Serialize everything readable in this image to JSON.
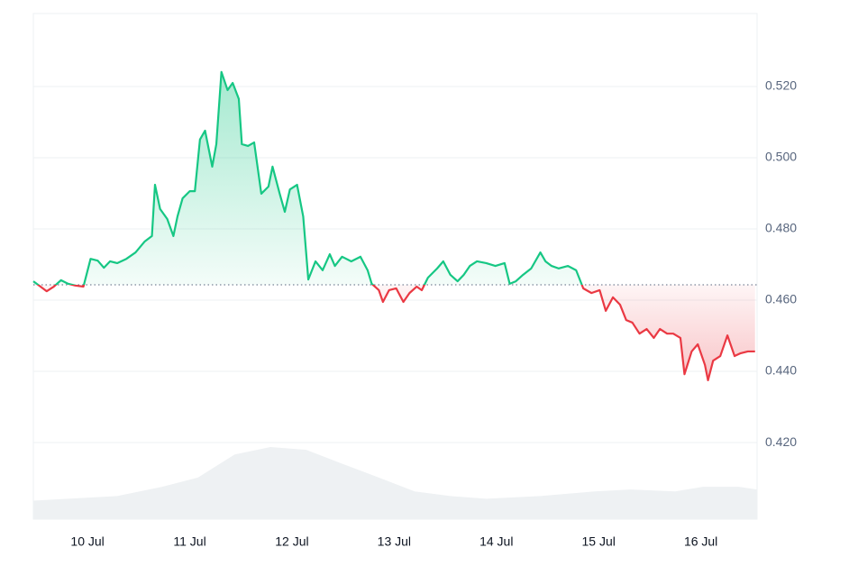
{
  "chart_data": {
    "type": "line",
    "x": [
      -0.53,
      -0.46,
      -0.4,
      -0.33,
      -0.26,
      -0.19,
      -0.12,
      -0.04,
      0.03,
      0.1,
      0.16,
      0.22,
      0.29,
      0.38,
      0.47,
      0.56,
      0.63,
      0.66,
      0.71,
      0.78,
      0.84,
      0.88,
      0.93,
      1.0,
      1.05,
      1.1,
      1.15,
      1.22,
      1.26,
      1.31,
      1.37,
      1.42,
      1.48,
      1.51,
      1.57,
      1.63,
      1.7,
      1.77,
      1.81,
      1.88,
      1.93,
      1.98,
      2.05,
      2.11,
      2.16,
      2.23,
      2.3,
      2.37,
      2.42,
      2.49,
      2.58,
      2.67,
      2.74,
      2.78,
      2.85,
      2.89,
      2.95,
      3.02,
      3.09,
      3.15,
      3.22,
      3.27,
      3.33,
      3.42,
      3.48,
      3.55,
      3.62,
      3.68,
      3.74,
      3.81,
      3.9,
      3.99,
      4.08,
      4.13,
      4.19,
      4.26,
      4.34,
      4.43,
      4.48,
      4.54,
      4.61,
      4.7,
      4.78,
      4.85,
      4.93,
      5.01,
      5.07,
      5.14,
      5.21,
      5.27,
      5.33,
      5.4,
      5.47,
      5.54,
      5.6,
      5.67,
      5.73,
      5.8,
      5.84,
      5.91,
      5.97,
      6.04,
      6.07,
      6.12,
      6.19,
      6.26,
      6.33,
      6.39,
      6.46,
      6.53
    ],
    "values": [
      0.4653,
      0.4638,
      0.4625,
      0.4638,
      0.4656,
      0.4646,
      0.4641,
      0.4638,
      0.4716,
      0.4711,
      0.4691,
      0.4709,
      0.4704,
      0.4716,
      0.4734,
      0.4765,
      0.478,
      0.4924,
      0.4856,
      0.4828,
      0.478,
      0.4835,
      0.4886,
      0.4906,
      0.4906,
      0.5051,
      0.5076,
      0.4975,
      0.5038,
      0.5241,
      0.519,
      0.521,
      0.5165,
      0.5038,
      0.5033,
      0.5043,
      0.4899,
      0.4919,
      0.4975,
      0.4899,
      0.4848,
      0.4911,
      0.4924,
      0.4835,
      0.4658,
      0.4709,
      0.4684,
      0.4729,
      0.4696,
      0.4722,
      0.4709,
      0.4722,
      0.4684,
      0.4646,
      0.4628,
      0.4595,
      0.4628,
      0.4633,
      0.4595,
      0.462,
      0.4638,
      0.4628,
      0.4663,
      0.4689,
      0.4709,
      0.4671,
      0.4653,
      0.4671,
      0.4696,
      0.4709,
      0.4704,
      0.4696,
      0.4704,
      0.4646,
      0.4653,
      0.4671,
      0.4689,
      0.4734,
      0.4709,
      0.4696,
      0.4689,
      0.4696,
      0.4684,
      0.4633,
      0.462,
      0.4628,
      0.457,
      0.4608,
      0.4587,
      0.4544,
      0.4537,
      0.4506,
      0.4519,
      0.4494,
      0.4519,
      0.4506,
      0.4506,
      0.4494,
      0.4392,
      0.4456,
      0.4476,
      0.4418,
      0.4375,
      0.443,
      0.4443,
      0.4501,
      0.4443,
      0.4451,
      0.4456,
      0.4456
    ],
    "baseline": 0.4643,
    "up_color": "#16c784",
    "down_color": "#ea3943",
    "volume": {
      "x": [
        -0.53,
        0.29,
        0.73,
        1.08,
        1.44,
        1.79,
        2.14,
        2.49,
        2.85,
        3.2,
        3.55,
        3.9,
        4.43,
        4.96,
        5.31,
        5.75,
        6.02,
        6.37,
        6.55
      ],
      "values": [
        20,
        25,
        35,
        45,
        70,
        78,
        75,
        60,
        45,
        30,
        25,
        22,
        25,
        30,
        32,
        30,
        35,
        35,
        32
      ],
      "color": "#eef1f3"
    },
    "xlim": [
      -0.53,
      6.55
    ],
    "xticks": [
      {
        "value": 0,
        "label": "10 Jul"
      },
      {
        "value": 1,
        "label": "11 Jul"
      },
      {
        "value": 2,
        "label": "12 Jul"
      },
      {
        "value": 3,
        "label": "13 Jul"
      },
      {
        "value": 4,
        "label": "14 Jul"
      },
      {
        "value": 5,
        "label": "15 Jul"
      },
      {
        "value": 6,
        "label": "16 Jul"
      }
    ],
    "ylim": [
      0.3985,
      0.5405
    ],
    "yticks": [
      {
        "value": 0.42,
        "label": "0.420"
      },
      {
        "value": 0.44,
        "label": "0.440"
      },
      {
        "value": 0.46,
        "label": "0.460"
      },
      {
        "value": 0.48,
        "label": "0.480"
      },
      {
        "value": 0.5,
        "label": "0.500"
      },
      {
        "value": 0.52,
        "label": "0.520"
      }
    ],
    "grid": true
  }
}
